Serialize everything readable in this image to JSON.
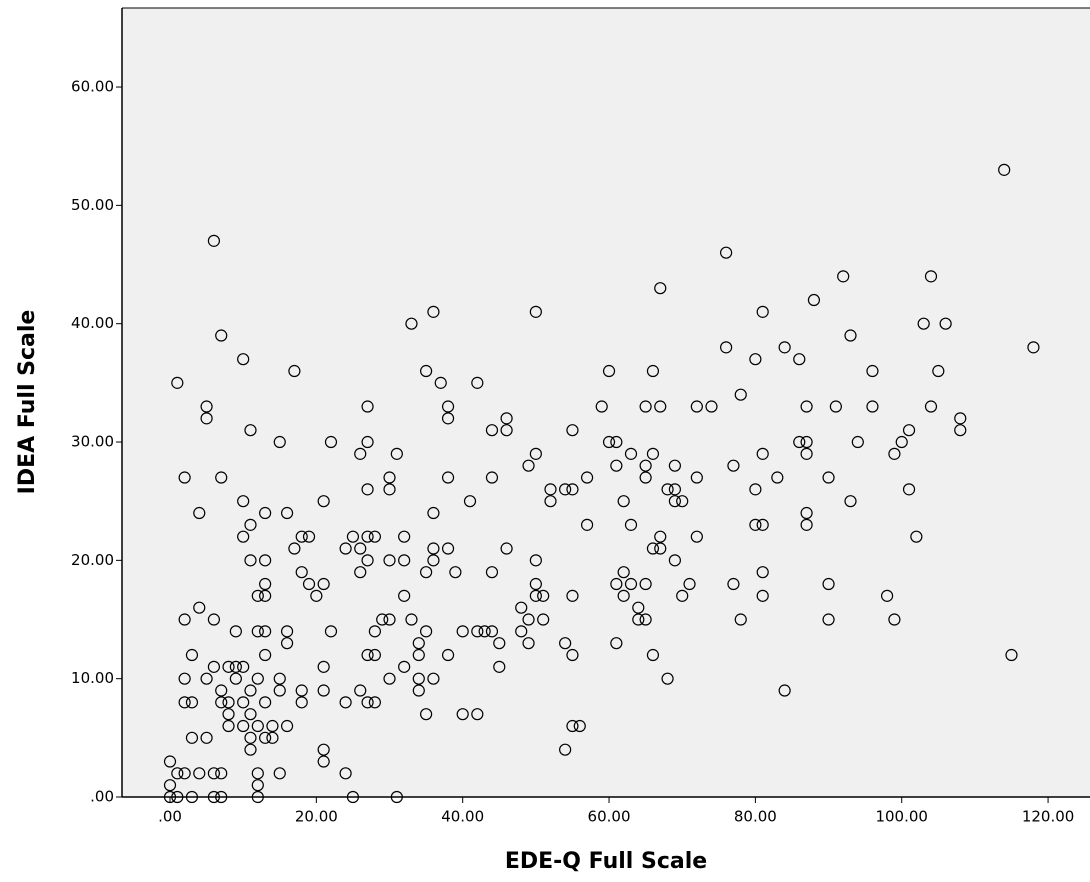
{
  "chart_data": {
    "type": "scatter",
    "x_label": "EDE-Q Full Scale",
    "y_label": "IDEA Full Scale",
    "marker_color": "#000000",
    "plot_background": "#f0f0f0",
    "xlim": [
      -6.56,
      125.73
    ],
    "ylim": [
      0,
      66.68
    ],
    "xticks": [
      {
        "value": 0,
        "label": ".00"
      },
      {
        "value": 20,
        "label": "20.00"
      },
      {
        "value": 40,
        "label": "40.00"
      },
      {
        "value": 60,
        "label": "60.00"
      },
      {
        "value": 80,
        "label": "80.00"
      },
      {
        "value": 100,
        "label": "100.00"
      },
      {
        "value": 120,
        "label": "120.00"
      }
    ],
    "yticks": [
      {
        "value": 0,
        "label": ".00"
      },
      {
        "value": 10,
        "label": "10.00"
      },
      {
        "value": 20,
        "label": "20.00"
      },
      {
        "value": 30,
        "label": "30.00"
      },
      {
        "value": 40,
        "label": "40.00"
      },
      {
        "value": 50,
        "label": "50.00"
      },
      {
        "value": 60,
        "label": "60.00"
      }
    ],
    "x": [
      114,
      6,
      76,
      92,
      104,
      67,
      88,
      36,
      50,
      81,
      33,
      103,
      106,
      7,
      93,
      76,
      84,
      118,
      10,
      80,
      86,
      17,
      35,
      60,
      66,
      96,
      105,
      1,
      37,
      42,
      78,
      5,
      27,
      38,
      59,
      65,
      67,
      72,
      74,
      87,
      91,
      96,
      104,
      5,
      38,
      46,
      108,
      11,
      44,
      46,
      55,
      101,
      108,
      15,
      22,
      27,
      60,
      61,
      86,
      87,
      94,
      100,
      31,
      26,
      50,
      63,
      66,
      81,
      87,
      99,
      49,
      61,
      65,
      69,
      77,
      2,
      7,
      30,
      38,
      44,
      57,
      65,
      72,
      83,
      90,
      27,
      30,
      52,
      54,
      55,
      68,
      69,
      80,
      101,
      10,
      21,
      41,
      52,
      62,
      69,
      70,
      93,
      4,
      13,
      16,
      36,
      87,
      11,
      57,
      63,
      80,
      81,
      87,
      10,
      18,
      19,
      25,
      27,
      28,
      32,
      67,
      72,
      102,
      17,
      24,
      26,
      36,
      38,
      46,
      66,
      67,
      11,
      13,
      27,
      30,
      32,
      36,
      50,
      69,
      18,
      26,
      35,
      39,
      44,
      62,
      81,
      13,
      19,
      21,
      50,
      61,
      63,
      65,
      71,
      77,
      90,
      12,
      13,
      20,
      32,
      50,
      51,
      55,
      62,
      70,
      81,
      98,
      4,
      48,
      64,
      2,
      6,
      29,
      30,
      33,
      49,
      51,
      64,
      65,
      78,
      90,
      99,
      9,
      12,
      13,
      16,
      22,
      28,
      35,
      40,
      42,
      43,
      44,
      48,
      16,
      34,
      45,
      49,
      54,
      61,
      3,
      13,
      27,
      28,
      34,
      38,
      55,
      66,
      115,
      6,
      8,
      9,
      10,
      21,
      32,
      45,
      2,
      5,
      9,
      12,
      15,
      30,
      34,
      36,
      68,
      7,
      11,
      15,
      18,
      21,
      26,
      34,
      84,
      2,
      3,
      7,
      8,
      10,
      13,
      18,
      24,
      27,
      28,
      8,
      11,
      35,
      40,
      42,
      8,
      10,
      12,
      14,
      16,
      55,
      56,
      3,
      5,
      11,
      13,
      14,
      11,
      21,
      54,
      0,
      21,
      1,
      2,
      4,
      6,
      7,
      12,
      15,
      24,
      0,
      12,
      0,
      1,
      3,
      6,
      7,
      12,
      25,
      31
    ],
    "y": [
      53,
      47,
      46,
      44,
      44,
      43,
      42,
      41,
      41,
      41,
      40,
      40,
      40,
      39,
      39,
      38,
      38,
      38,
      37,
      37,
      37,
      36,
      36,
      36,
      36,
      36,
      36,
      35,
      35,
      35,
      34,
      33,
      33,
      33,
      33,
      33,
      33,
      33,
      33,
      33,
      33,
      33,
      33,
      32,
      32,
      32,
      32,
      31,
      31,
      31,
      31,
      31,
      31,
      30,
      30,
      30,
      30,
      30,
      30,
      30,
      30,
      30,
      29,
      29,
      29,
      29,
      29,
      29,
      29,
      29,
      28,
      28,
      28,
      28,
      28,
      27,
      27,
      27,
      27,
      27,
      27,
      27,
      27,
      27,
      27,
      26,
      26,
      26,
      26,
      26,
      26,
      26,
      26,
      26,
      25,
      25,
      25,
      25,
      25,
      25,
      25,
      25,
      24,
      24,
      24,
      24,
      24,
      23,
      23,
      23,
      23,
      23,
      23,
      22,
      22,
      22,
      22,
      22,
      22,
      22,
      22,
      22,
      22,
      21,
      21,
      21,
      21,
      21,
      21,
      21,
      21,
      20,
      20,
      20,
      20,
      20,
      20,
      20,
      20,
      19,
      19,
      19,
      19,
      19,
      19,
      19,
      18,
      18,
      18,
      18,
      18,
      18,
      18,
      18,
      18,
      18,
      17,
      17,
      17,
      17,
      17,
      17,
      17,
      17,
      17,
      17,
      17,
      16,
      16,
      16,
      15,
      15,
      15,
      15,
      15,
      15,
      15,
      15,
      15,
      15,
      15,
      15,
      14,
      14,
      14,
      14,
      14,
      14,
      14,
      14,
      14,
      14,
      14,
      14,
      13,
      13,
      13,
      13,
      13,
      13,
      12,
      12,
      12,
      12,
      12,
      12,
      12,
      12,
      12,
      11,
      11,
      11,
      11,
      11,
      11,
      11,
      10,
      10,
      10,
      10,
      10,
      10,
      10,
      10,
      10,
      9,
      9,
      9,
      9,
      9,
      9,
      9,
      9,
      8,
      8,
      8,
      8,
      8,
      8,
      8,
      8,
      8,
      8,
      7,
      7,
      7,
      7,
      7,
      6,
      6,
      6,
      6,
      6,
      6,
      6,
      5,
      5,
      5,
      5,
      5,
      4,
      4,
      4,
      3,
      3,
      2,
      2,
      2,
      2,
      2,
      2,
      2,
      2,
      1,
      1,
      0,
      0,
      0,
      0,
      0,
      0,
      0,
      0
    ]
  }
}
